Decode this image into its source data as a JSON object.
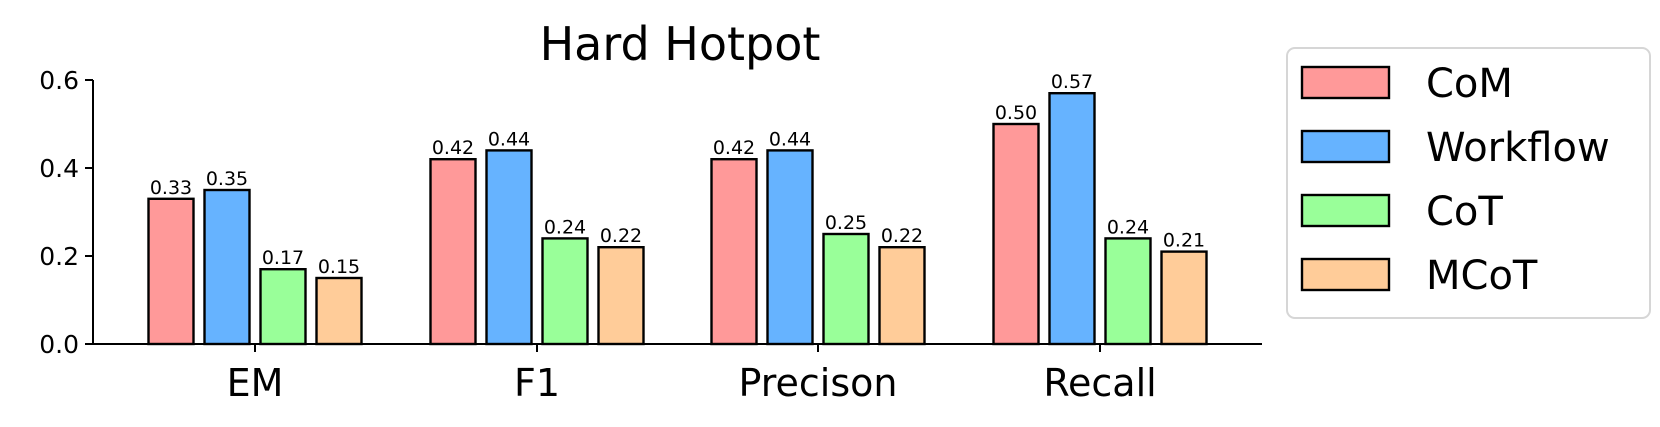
{
  "chart_data": {
    "type": "bar",
    "title": "Hard Hotpot",
    "categories": [
      "EM",
      "F1",
      "Precison",
      "Recall"
    ],
    "series": [
      {
        "name": "CoM",
        "color": "#ff9999",
        "values": [
          0.33,
          0.42,
          0.42,
          0.5
        ]
      },
      {
        "name": "Workflow",
        "color": "#66b3ff",
        "values": [
          0.35,
          0.44,
          0.44,
          0.57
        ]
      },
      {
        "name": "CoT",
        "color": "#99ff99",
        "values": [
          0.17,
          0.24,
          0.25,
          0.24
        ]
      },
      {
        "name": "MCoT",
        "color": "#ffcc99",
        "values": [
          0.15,
          0.22,
          0.22,
          0.21
        ]
      }
    ],
    "ylim": [
      0,
      0.6
    ],
    "yticks": [
      "0.0",
      "0.2",
      "0.4",
      "0.6"
    ],
    "xlabel": "",
    "ylabel": "",
    "legend": "right",
    "grid": false
  }
}
